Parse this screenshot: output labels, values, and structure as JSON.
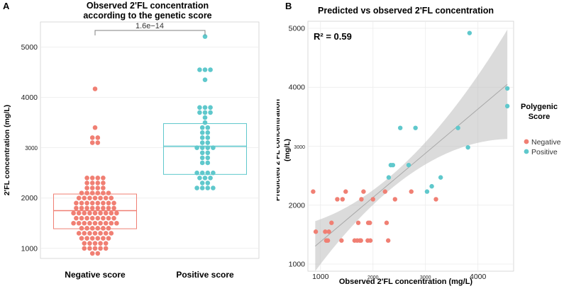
{
  "colors": {
    "negative": "#F07F73",
    "positive": "#5FC8CC",
    "grid": "#EBEBEB",
    "ribbon": "#BDBDBD",
    "fit_line": "#A8A8A8",
    "bracket": "#808080"
  },
  "chart_data": [
    {
      "panel_label": "A",
      "type": "box_dotplot",
      "title_line1": "Observed 2'FL concentration",
      "title_line2": "according to the genetic score",
      "ylabel": "2'FL concentration (mg/L)",
      "categories": [
        "Negative score",
        "Positive score"
      ],
      "ylim": [
        800,
        5500
      ],
      "yticks": [
        1000,
        2000,
        3000,
        4000,
        5000
      ],
      "significance": "1.6e−14",
      "boxes": [
        {
          "name": "Negative score",
          "q1": 1390,
          "median": 1750,
          "q3": 2080
        },
        {
          "name": "Positive score",
          "q1": 2470,
          "median": 3030,
          "q3": 3480
        }
      ],
      "series": [
        {
          "name": "Negative score",
          "values": [
            900,
            900,
            1000,
            1000,
            1000,
            1000,
            1000,
            1100,
            1100,
            1100,
            1100,
            1100,
            1200,
            1200,
            1200,
            1200,
            1200,
            1200,
            1300,
            1300,
            1300,
            1300,
            1300,
            1300,
            1300,
            1400,
            1400,
            1400,
            1400,
            1400,
            1400,
            1500,
            1500,
            1500,
            1500,
            1500,
            1500,
            1500,
            1500,
            1500,
            1600,
            1600,
            1600,
            1600,
            1600,
            1600,
            1600,
            1600,
            1700,
            1700,
            1700,
            1700,
            1700,
            1700,
            1700,
            1700,
            1700,
            1800,
            1800,
            1800,
            1800,
            1800,
            1800,
            1800,
            1800,
            1900,
            1900,
            1900,
            1900,
            1900,
            1900,
            1900,
            1900,
            2000,
            2000,
            2000,
            2000,
            2000,
            2000,
            2000,
            2100,
            2100,
            2100,
            2100,
            2100,
            2100,
            2200,
            2200,
            2200,
            2200,
            2300,
            2300,
            2300,
            2300,
            2400,
            2400,
            2400,
            2400,
            3100,
            3100,
            3200,
            3200,
            3400,
            4170
          ]
        },
        {
          "name": "Positive score",
          "values": [
            2200,
            2200,
            2200,
            2200,
            2300,
            2300,
            2400,
            2400,
            2400,
            2500,
            2500,
            2500,
            2500,
            2700,
            2700,
            2800,
            2800,
            2900,
            2900,
            3000,
            3000,
            3000,
            3000,
            3100,
            3100,
            3200,
            3200,
            3300,
            3300,
            3400,
            3400,
            3500,
            3600,
            3700,
            3700,
            3700,
            3800,
            3800,
            3800,
            4350,
            4550,
            4550,
            4550,
            5210
          ]
        }
      ]
    },
    {
      "panel_label": "B",
      "type": "scatter",
      "title": "Predicted vs observed 2'FL concentration",
      "xlabel": "Observed 2'FL concentration (mg/L)",
      "ylabel": "Predicted 2'FL concentration\n(mg/L)",
      "annotation": "R² = 0.59",
      "xlim": [
        760,
        4680
      ],
      "ylim": [
        880,
        5120
      ],
      "xticks_major": [
        1000,
        2000,
        3000,
        4000
      ],
      "yticks_major": [
        1000,
        2000,
        3000,
        4000,
        5000
      ],
      "fit": {
        "slope": 0.75,
        "intercept": 630
      },
      "legend": {
        "title_line1": "Polygenic",
        "title_line2": "Score",
        "items": [
          {
            "label": "Negative",
            "color_key": "negative"
          },
          {
            "label": "Positive",
            "color_key": "positive"
          }
        ]
      },
      "series": [
        {
          "name": "Negative",
          "points": [
            [
              860,
              2230
            ],
            [
              910,
              1550
            ],
            [
              1090,
              1550
            ],
            [
              1110,
              1400
            ],
            [
              1140,
              1400
            ],
            [
              1160,
              1550
            ],
            [
              1210,
              1700
            ],
            [
              1320,
              2100
            ],
            [
              1400,
              1400
            ],
            [
              1420,
              2100
            ],
            [
              1480,
              2230
            ],
            [
              1650,
              1400
            ],
            [
              1700,
              1400
            ],
            [
              1720,
              1700
            ],
            [
              1750,
              1400
            ],
            [
              1770,
              1400
            ],
            [
              1780,
              2100
            ],
            [
              1820,
              2230
            ],
            [
              1900,
              1400
            ],
            [
              1910,
              1700
            ],
            [
              1940,
              1700
            ],
            [
              1950,
              1400
            ],
            [
              2000,
              2100
            ],
            [
              2230,
              2230
            ],
            [
              2260,
              1700
            ],
            [
              2290,
              1400
            ],
            [
              2420,
              2100
            ],
            [
              2730,
              2230
            ],
            [
              3200,
              2100
            ]
          ]
        },
        {
          "name": "Positive",
          "points": [
            [
              2300,
              2470
            ],
            [
              2340,
              2680
            ],
            [
              2380,
              2680
            ],
            [
              2520,
              3310
            ],
            [
              2680,
              2680
            ],
            [
              2810,
              3310
            ],
            [
              3030,
              2230
            ],
            [
              3120,
              2320
            ],
            [
              3290,
              2470
            ],
            [
              3620,
              3310
            ],
            [
              3810,
              2980
            ],
            [
              3840,
              4920
            ],
            [
              4560,
              3980
            ],
            [
              4560,
              3680
            ]
          ]
        }
      ]
    }
  ]
}
